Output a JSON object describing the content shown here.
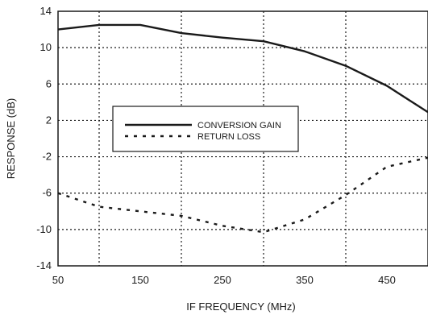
{
  "chart_data": {
    "type": "line",
    "xlabel": "IF FREQUENCY (MHz)",
    "ylabel": "RESPONSE (dB)",
    "xlim": [
      50,
      500
    ],
    "ylim": [
      -14,
      14
    ],
    "xticks": [
      50,
      150,
      250,
      350,
      450
    ],
    "yticks": [
      14,
      10,
      6,
      2,
      -2,
      -6,
      -10,
      -14
    ],
    "grid": true,
    "grid_style": "dotted",
    "legend_position": "center-left",
    "series": [
      {
        "name": "CONVERSION GAIN",
        "line_style": "solid",
        "color": "#1a1a1a",
        "x": [
          50,
          100,
          150,
          200,
          250,
          300,
          350,
          400,
          450,
          500
        ],
        "y": [
          12.0,
          12.5,
          12.5,
          11.6,
          11.1,
          10.7,
          9.6,
          8.0,
          5.8,
          2.9
        ]
      },
      {
        "name": "RETURN LOSS",
        "line_style": "dotted",
        "color": "#1a1a1a",
        "x": [
          50,
          100,
          150,
          200,
          250,
          300,
          350,
          400,
          450,
          500
        ],
        "y": [
          -6.0,
          -7.5,
          -8.0,
          -8.5,
          -9.6,
          -10.3,
          -8.9,
          -6.2,
          -3.1,
          -2.1
        ]
      }
    ]
  }
}
